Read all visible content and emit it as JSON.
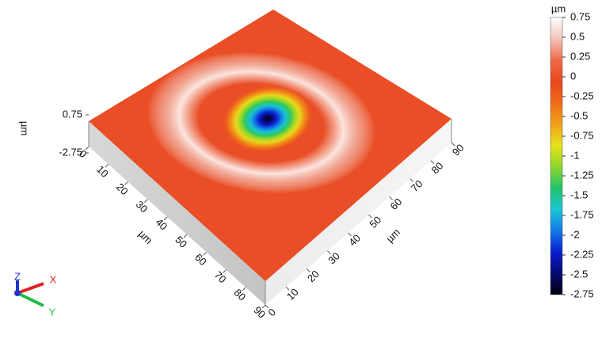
{
  "chart_data": {
    "type": "surface3d",
    "x_label": "µm",
    "y_label": "µm",
    "z_label": "µm",
    "xlim": [
      0,
      90
    ],
    "xticks": [
      0,
      10,
      20,
      30,
      40,
      50,
      60,
      70,
      80,
      90
    ],
    "ylim": [
      0,
      90
    ],
    "yticks": [
      0,
      10,
      20,
      30,
      40,
      50,
      60,
      70,
      80,
      90
    ],
    "zlim": [
      -2.75,
      0.75
    ],
    "zticks": [
      -2.75,
      0.75
    ],
    "colorbar": {
      "title": "µm",
      "ticks": [
        0.75,
        0.5,
        0.25,
        0,
        -0.25,
        -0.5,
        -0.75,
        -1,
        -1.25,
        -1.5,
        -1.75,
        -2,
        -2.25,
        -2.5,
        -2.75
      ]
    },
    "colorscale": [
      "#ffffff",
      "#f3c4bc",
      "#ee6a4a",
      "#e8461c",
      "#ee6a1a",
      "#f2a01a",
      "#e6e21c",
      "#8ed62a",
      "#22c46a",
      "#1ac6d6",
      "#137ae8",
      "#0a1ed0",
      "#060870",
      "#000010"
    ],
    "triad": {
      "z": "Z",
      "x": "X",
      "y": "Y"
    }
  }
}
